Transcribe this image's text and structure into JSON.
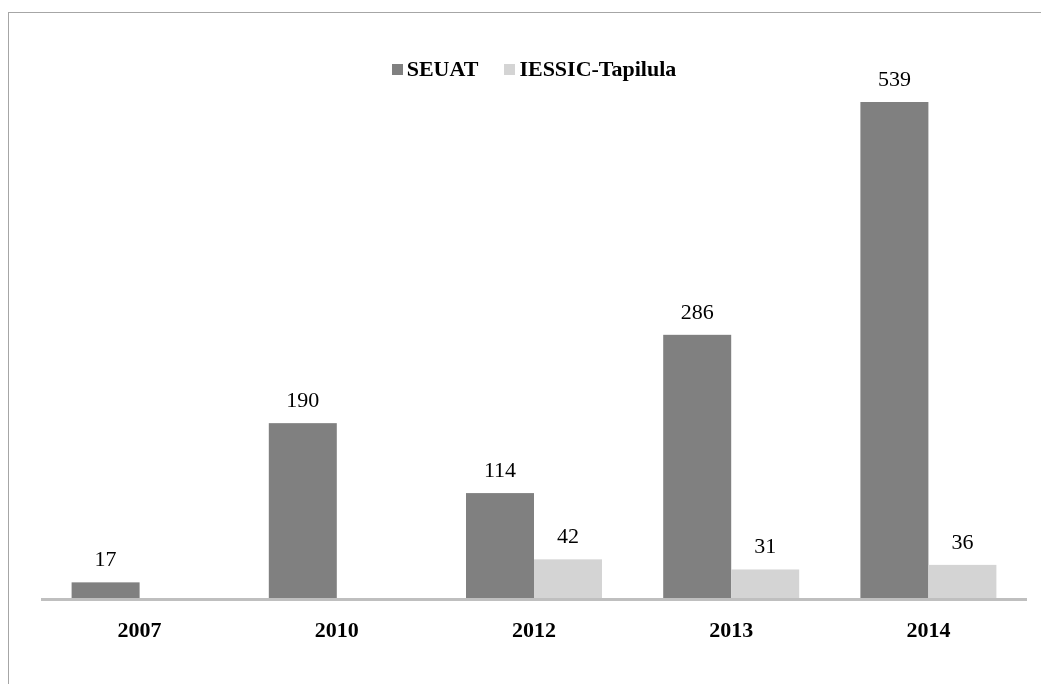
{
  "chart_data": {
    "type": "bar",
    "categories": [
      "2007",
      "2010",
      "2012",
      "2013",
      "2014"
    ],
    "series": [
      {
        "name": "SEUAT",
        "color": "#808080",
        "values": [
          17,
          190,
          114,
          286,
          539
        ]
      },
      {
        "name": "IESSIC-Tapilula",
        "color": "#d4d4d4",
        "values": [
          null,
          null,
          42,
          31,
          36
        ]
      }
    ],
    "data_labels": true,
    "legend": "top"
  }
}
